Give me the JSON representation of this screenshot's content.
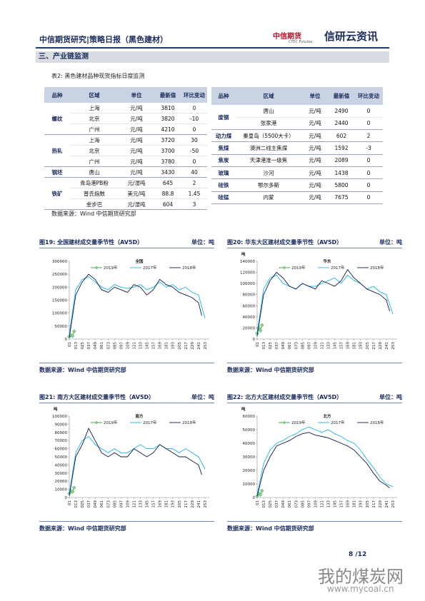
{
  "header": {
    "title": "中信期货研究|策略日报（黑色建材）",
    "logo_cn": "中信期货",
    "logo_en": "CITIC Futures",
    "brand": "信研云资讯"
  },
  "section": "三、产业链监测",
  "table": {
    "caption": "表2: 黑色建材品种现货指标日度监测",
    "header": [
      "品种",
      "区域",
      "单位",
      "最新值",
      "环比变动"
    ],
    "left": [
      {
        "product": "螺纹",
        "rows": [
          [
            "上海",
            "元/吨",
            3810,
            0
          ],
          [
            "北京",
            "元/吨",
            3820,
            -10
          ],
          [
            "广州",
            "元/吨",
            4210,
            0
          ]
        ]
      },
      {
        "product": "热轧",
        "rows": [
          [
            "上海",
            "元/吨",
            3720,
            30
          ],
          [
            "北京",
            "元/吨",
            3700,
            -50
          ],
          [
            "广州",
            "元/吨",
            3780,
            0
          ]
        ]
      },
      {
        "product": "钢坯",
        "rows": [
          [
            "唐山",
            "元/吨",
            3430,
            40
          ]
        ]
      },
      {
        "product": "铁矿",
        "rows": [
          [
            "青岛港PB粉",
            "元/湿吨",
            645,
            2
          ],
          [
            "普氏指数",
            "美元/吨",
            88.8,
            1.45
          ],
          [
            "金步巴",
            "元/湿吨",
            604,
            3
          ]
        ]
      }
    ],
    "right": [
      {
        "product": "废钢",
        "rows": [
          [
            "唐山",
            "元/吨",
            2490,
            0
          ],
          [
            "张家港",
            "元/吨",
            2440,
            0
          ]
        ]
      },
      {
        "product": "动力煤",
        "rows": [
          [
            "秦皇岛（5500大卡）",
            "元/吨",
            602,
            2
          ]
        ]
      },
      {
        "product": "焦煤",
        "rows": [
          [
            "澳洲二线主焦煤",
            "元/吨",
            1592,
            -3
          ]
        ]
      },
      {
        "product": "焦炭",
        "rows": [
          [
            "天津港准一级焦",
            "元/吨",
            2089,
            0
          ]
        ]
      },
      {
        "product": "玻璃",
        "rows": [
          [
            "沙河",
            "元/吨",
            1438,
            0
          ]
        ]
      },
      {
        "product": "硅铁",
        "rows": [
          [
            "鄂尔多斯",
            "元/吨",
            5800,
            0
          ]
        ]
      },
      {
        "product": "硅锰",
        "rows": [
          [
            "内蒙",
            "元/吨",
            7675,
            0
          ]
        ]
      }
    ],
    "source": "数据来源：Wind 中信期货研究部"
  },
  "chart_data": [
    {
      "type": "line",
      "title": "图19: 全国建材成交量季节性（AV5D）",
      "unit": "单位：吨",
      "annotation": "全国",
      "xlim": [
        1,
        261
      ],
      "ylim": [
        0,
        300000
      ],
      "yticks": [
        0,
        50000,
        100000,
        150000,
        200000,
        250000,
        300000
      ],
      "xticks": [
        {
          "value": 1,
          "label": "01"
        },
        {
          "value": 13,
          "label": "013"
        },
        {
          "value": 25,
          "label": "025"
        },
        {
          "value": 37,
          "label": "037"
        },
        {
          "value": 49,
          "label": "049"
        },
        {
          "value": 61,
          "label": "061"
        },
        {
          "value": 73,
          "label": "073"
        },
        {
          "value": 85,
          "label": "085"
        },
        {
          "value": 97,
          "label": "097"
        },
        {
          "value": 109,
          "label": "109"
        },
        {
          "value": 121,
          "label": "121"
        },
        {
          "value": 133,
          "label": "133"
        },
        {
          "value": 145,
          "label": "145"
        },
        {
          "value": 157,
          "label": "157"
        },
        {
          "value": 169,
          "label": "169"
        },
        {
          "value": 181,
          "label": "181"
        },
        {
          "value": 193,
          "label": "193"
        },
        {
          "value": 205,
          "label": "205"
        },
        {
          "value": 217,
          "label": "217"
        },
        {
          "value": 229,
          "label": "229"
        },
        {
          "value": 241,
          "label": "241"
        },
        {
          "value": 253,
          "label": "253"
        }
      ],
      "series": [
        {
          "name": "2019年",
          "color": "#2e9e3a",
          "x": [
            1,
            4,
            7,
            10
          ],
          "values": [
            10000,
            15000,
            12000,
            30000
          ]
        },
        {
          "name": "2017年",
          "color": "#1fb3e0",
          "x": [
            1,
            13,
            25,
            37,
            49,
            61,
            73,
            85,
            97,
            109,
            121,
            133,
            145,
            157,
            169,
            181,
            193,
            205,
            217,
            229,
            241,
            253
          ],
          "values": [
            20000,
            190000,
            230000,
            240000,
            220000,
            200000,
            190000,
            210000,
            200000,
            195000,
            200000,
            210000,
            190000,
            200000,
            220000,
            200000,
            210000,
            190000,
            200000,
            180000,
            170000,
            80000
          ]
        },
        {
          "name": "2018年",
          "color": "#0d1b4a",
          "x": [
            1,
            13,
            25,
            37,
            49,
            61,
            73,
            85,
            97,
            109,
            121,
            133,
            145,
            157,
            169,
            181,
            193,
            205,
            217,
            229,
            241,
            247
          ],
          "values": [
            5000,
            170000,
            220000,
            250000,
            230000,
            190000,
            180000,
            200000,
            190000,
            180000,
            210000,
            200000,
            170000,
            190000,
            230000,
            210000,
            200000,
            180000,
            170000,
            160000,
            140000,
            90000
          ]
        }
      ],
      "source": "数据来源：Wind 中信期货研究部"
    },
    {
      "type": "line",
      "title": "图20: 华东大区建材成交量季节性（AV5D）",
      "unit": "单位：吨",
      "annotation": "华东",
      "y_label": "吨",
      "xlim": [
        1,
        261
      ],
      "ylim": [
        0,
        140000
      ],
      "yticks": [
        0,
        20000,
        40000,
        60000,
        80000,
        100000,
        120000,
        140000
      ],
      "xticks": [
        {
          "value": 1,
          "label": "01"
        },
        {
          "value": 13,
          "label": "013"
        },
        {
          "value": 25,
          "label": "025"
        },
        {
          "value": 37,
          "label": "037"
        },
        {
          "value": 49,
          "label": "049"
        },
        {
          "value": 61,
          "label": "061"
        },
        {
          "value": 73,
          "label": "073"
        },
        {
          "value": 85,
          "label": "085"
        },
        {
          "value": 97,
          "label": "097"
        },
        {
          "value": 109,
          "label": "109"
        },
        {
          "value": 121,
          "label": "121"
        },
        {
          "value": 133,
          "label": "133"
        },
        {
          "value": 145,
          "label": "145"
        },
        {
          "value": 157,
          "label": "157"
        },
        {
          "value": 169,
          "label": "169"
        },
        {
          "value": 181,
          "label": "181"
        },
        {
          "value": 193,
          "label": "193"
        },
        {
          "value": 205,
          "label": "205"
        },
        {
          "value": 217,
          "label": "217"
        },
        {
          "value": 229,
          "label": "229"
        },
        {
          "value": 241,
          "label": "241"
        },
        {
          "value": 253,
          "label": "253"
        }
      ],
      "series": [
        {
          "name": "2019年",
          "color": "#2e9e3a",
          "x": [
            1,
            4,
            7,
            10
          ],
          "values": [
            10000,
            20000,
            15000,
            25000
          ]
        },
        {
          "name": "2017年",
          "color": "#1fb3e0",
          "x": [
            1,
            13,
            25,
            37,
            49,
            61,
            73,
            85,
            97,
            109,
            121,
            133,
            145,
            157,
            169,
            181,
            193,
            205,
            217,
            229,
            241,
            253
          ],
          "values": [
            10000,
            90000,
            110000,
            115000,
            100000,
            95000,
            90000,
            100000,
            95000,
            95000,
            100000,
            105000,
            110000,
            100000,
            115000,
            105000,
            100000,
            90000,
            95000,
            85000,
            80000,
            45000
          ]
        },
        {
          "name": "2018年",
          "color": "#0d1b4a",
          "x": [
            1,
            13,
            25,
            37,
            49,
            61,
            73,
            85,
            97,
            109,
            121,
            133,
            145,
            157,
            169,
            181,
            193,
            205,
            217,
            229,
            241,
            247
          ],
          "values": [
            5000,
            80000,
            105000,
            120000,
            110000,
            95000,
            90000,
            100000,
            95000,
            90000,
            105000,
            100000,
            95000,
            105000,
            125000,
            110000,
            100000,
            90000,
            85000,
            80000,
            70000,
            50000
          ]
        }
      ],
      "source": "数据来源：Wind 中信期货研究部"
    },
    {
      "type": "line",
      "title": "图21: 南方大区建材成交量季节性（AV5D）",
      "unit": "单位：吨",
      "annotation": "南方",
      "y_label": "吨",
      "xlim": [
        1,
        261
      ],
      "ylim": [
        0,
        100000
      ],
      "yticks": [
        0,
        10000,
        20000,
        30000,
        40000,
        50000,
        60000,
        70000,
        80000,
        90000,
        100000
      ],
      "xticks": [
        {
          "value": 1,
          "label": "01"
        },
        {
          "value": 13,
          "label": "013"
        },
        {
          "value": 25,
          "label": "025"
        },
        {
          "value": 37,
          "label": "037"
        },
        {
          "value": 49,
          "label": "049"
        },
        {
          "value": 61,
          "label": "061"
        },
        {
          "value": 73,
          "label": "073"
        },
        {
          "value": 85,
          "label": "085"
        },
        {
          "value": 97,
          "label": "097"
        },
        {
          "value": 109,
          "label": "109"
        },
        {
          "value": 121,
          "label": "121"
        },
        {
          "value": 133,
          "label": "133"
        },
        {
          "value": 145,
          "label": "145"
        },
        {
          "value": 157,
          "label": "157"
        },
        {
          "value": 169,
          "label": "169"
        },
        {
          "value": 181,
          "label": "181"
        },
        {
          "value": 193,
          "label": "193"
        },
        {
          "value": 205,
          "label": "205"
        },
        {
          "value": 217,
          "label": "217"
        },
        {
          "value": 229,
          "label": "229"
        },
        {
          "value": 241,
          "label": "241"
        },
        {
          "value": 253,
          "label": "253"
        }
      ],
      "series": [
        {
          "name": "2019年",
          "color": "#2e9e3a",
          "x": [
            1,
            4,
            7,
            10
          ],
          "values": [
            5000,
            8000,
            7000,
            12000
          ]
        },
        {
          "name": "2017年",
          "color": "#1fb3e0",
          "x": [
            1,
            13,
            25,
            37,
            49,
            61,
            73,
            85,
            97,
            109,
            121,
            133,
            145,
            157,
            169,
            181,
            193,
            205,
            217,
            229,
            241,
            253
          ],
          "values": [
            5000,
            55000,
            70000,
            75000,
            65000,
            60000,
            55000,
            60000,
            55000,
            55000,
            60000,
            65000,
            60000,
            60000,
            65000,
            60000,
            60000,
            55000,
            60000,
            55000,
            50000,
            35000
          ]
        },
        {
          "name": "2018年",
          "color": "#0d1b4a",
          "x": [
            1,
            13,
            25,
            37,
            49,
            61,
            73,
            85,
            97,
            109,
            121,
            133,
            145,
            157,
            169,
            181,
            193,
            205,
            217,
            229,
            241,
            247
          ],
          "values": [
            2000,
            50000,
            65000,
            85000,
            70000,
            55000,
            50000,
            55000,
            50000,
            50000,
            60000,
            55000,
            50000,
            55000,
            65000,
            60000,
            55000,
            50000,
            50000,
            45000,
            40000,
            28000
          ]
        }
      ],
      "source": "数据来源：Wind 中信期货研究部"
    },
    {
      "type": "line",
      "title": "图22: 北方大区建材成交量季节性（AV5D）",
      "unit": "单位：吨",
      "annotation": "北方",
      "y_label": "吨",
      "xlim": [
        1,
        261
      ],
      "ylim": [
        0,
        60000
      ],
      "yticks": [
        0,
        10000,
        20000,
        30000,
        40000,
        50000,
        60000
      ],
      "xticks": [
        {
          "value": 1,
          "label": "01"
        },
        {
          "value": 13,
          "label": "013"
        },
        {
          "value": 25,
          "label": "025"
        },
        {
          "value": 37,
          "label": "037"
        },
        {
          "value": 49,
          "label": "049"
        },
        {
          "value": 61,
          "label": "061"
        },
        {
          "value": 73,
          "label": "073"
        },
        {
          "value": 85,
          "label": "085"
        },
        {
          "value": 97,
          "label": "097"
        },
        {
          "value": 109,
          "label": "109"
        },
        {
          "value": 121,
          "label": "121"
        },
        {
          "value": 133,
          "label": "133"
        },
        {
          "value": 145,
          "label": "145"
        },
        {
          "value": 157,
          "label": "157"
        },
        {
          "value": 169,
          "label": "169"
        },
        {
          "value": 181,
          "label": "181"
        },
        {
          "value": 193,
          "label": "193"
        },
        {
          "value": 205,
          "label": "205"
        },
        {
          "value": 217,
          "label": "217"
        },
        {
          "value": 229,
          "label": "229"
        },
        {
          "value": 241,
          "label": "241"
        },
        {
          "value": 253,
          "label": "253"
        }
      ],
      "series": [
        {
          "name": "2019年",
          "color": "#2e9e3a",
          "x": [
            1,
            4,
            7,
            10
          ],
          "values": [
            1000,
            3000,
            2000,
            5000
          ]
        },
        {
          "name": "2017年",
          "color": "#1fb3e0",
          "x": [
            1,
            13,
            25,
            37,
            49,
            61,
            73,
            85,
            97,
            109,
            121,
            133,
            145,
            157,
            169,
            181,
            193,
            205,
            217,
            229,
            241,
            253
          ],
          "values": [
            2000,
            25000,
            35000,
            40000,
            42000,
            45000,
            47000,
            50000,
            52000,
            50000,
            48000,
            50000,
            47000,
            45000,
            42000,
            40000,
            35000,
            28000,
            22000,
            15000,
            10000,
            8000
          ]
        },
        {
          "name": "2018年",
          "color": "#0d1b4a",
          "x": [
            1,
            13,
            25,
            37,
            49,
            61,
            73,
            85,
            97,
            109,
            121,
            133,
            145,
            157,
            169,
            181,
            193,
            205,
            217,
            229,
            241,
            247
          ],
          "values": [
            1000,
            20000,
            30000,
            38000,
            40000,
            42000,
            45000,
            47000,
            48000,
            46000,
            45000,
            44000,
            42000,
            40000,
            38000,
            35000,
            30000,
            25000,
            18000,
            12000,
            9000,
            7000
          ]
        }
      ],
      "source": "数据来源：Wind 中信期货研究部"
    }
  ],
  "page": "8 /12",
  "watermark": {
    "text": "我的煤炭网",
    "url": "www.mycoal.cn"
  }
}
